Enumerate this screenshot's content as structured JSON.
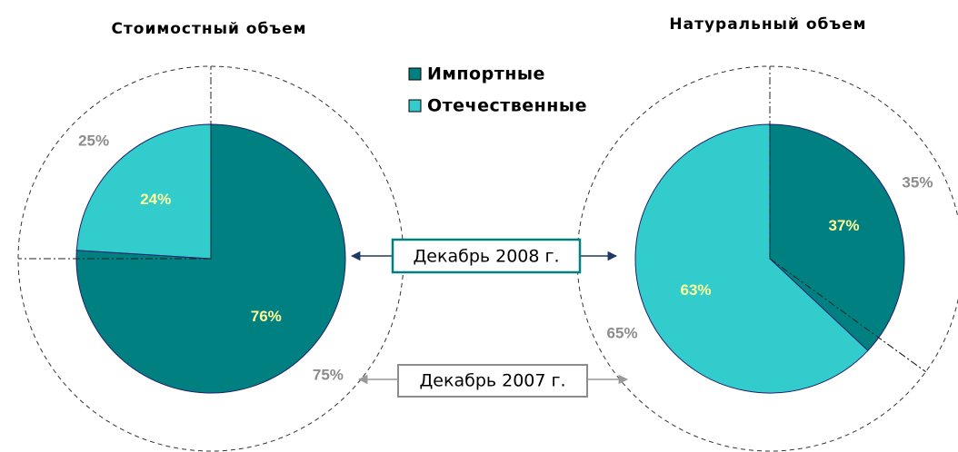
{
  "legend": {
    "categories": [
      "Импортные",
      "Отечественные"
    ],
    "colors": [
      "#008080",
      "#33cccc"
    ]
  },
  "periods": [
    "Декабрь 2008 г.",
    "Декабрь 2007 г."
  ],
  "chart_data": [
    {
      "type": "pie",
      "title": "Стоимостный объем",
      "series": [
        {
          "values": [
            76,
            24
          ],
          "value_labels": [
            "76%",
            "24%"
          ]
        },
        {
          "values": [
            75,
            25
          ],
          "value_labels": [
            "75%",
            "25%"
          ]
        }
      ]
    },
    {
      "type": "pie",
      "title": "Натуральный объем",
      "series": [
        {
          "values": [
            37,
            63
          ],
          "value_labels": [
            "37%",
            "63%"
          ]
        },
        {
          "values": [
            35,
            65
          ],
          "value_labels": [
            "35%",
            "65%"
          ]
        }
      ]
    }
  ]
}
